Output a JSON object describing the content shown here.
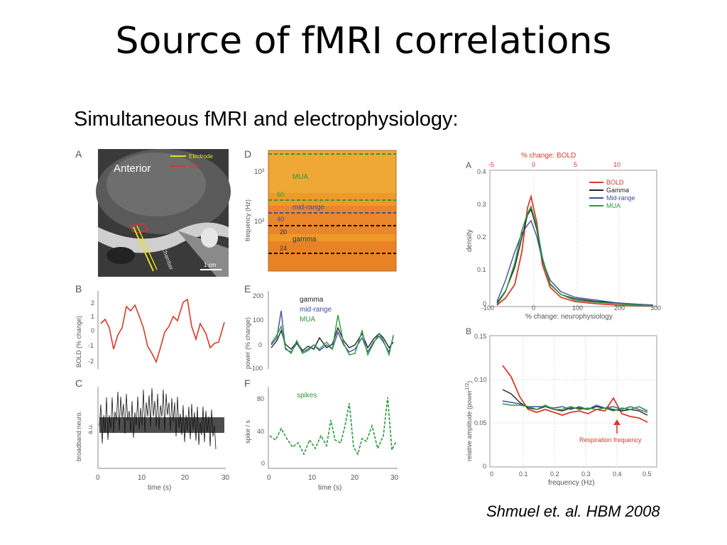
{
  "slide": {
    "title": "Source of fMRI correlations",
    "subtitle": "Simultaneous fMRI and electrophysiology:",
    "citation": "Shmuel et. al. HBM 2008"
  },
  "left_figure": {
    "panel_labels": [
      "A",
      "B",
      "C",
      "D",
      "E",
      "F"
    ],
    "panel_a": {
      "anterior": "Anterior",
      "legend": [
        "Electrode",
        "ROI"
      ],
      "scale": "1 cm",
      "chamber": "Chamber"
    },
    "panel_b": {
      "ylabel": "BOLD (% change)",
      "yticks": [
        "2",
        "1",
        "0",
        "-1",
        "-2"
      ]
    },
    "panel_c": {
      "ylabel": "broadband neuro.",
      "unit": "a.u.",
      "xticks": [
        "0",
        "10",
        "20",
        "30"
      ],
      "xlabel": "time (s)"
    },
    "panel_d": {
      "ylabel": "frequency (Hz)",
      "yticks": [
        "10³",
        "10²"
      ],
      "bands": [
        "MUA",
        "mid-range",
        "gamma"
      ],
      "band_edges": [
        "60",
        "40",
        "20",
        "24"
      ]
    },
    "panel_e": {
      "ylabel": "power (% change)",
      "yticks": [
        "200",
        "100",
        "0",
        "-100"
      ],
      "legend": [
        "gamma",
        "mid-range",
        "MUA"
      ]
    },
    "panel_f": {
      "ylabel": "spike / s",
      "yticks": [
        "80",
        "40",
        "0"
      ],
      "legend": "spikes",
      "xticks": [
        "0",
        "10",
        "20",
        "30"
      ],
      "xlabel": "time (s)"
    },
    "colors": {
      "bold": "#d83a2a",
      "gamma": "#222222",
      "midrange": "#3d4fa0",
      "mua": "#2a9a3a",
      "spikes": "#2a9a3a"
    }
  },
  "right_figure": {
    "panel_a": {
      "label": "A",
      "top_axis_label": "% change: BOLD",
      "top_ticks": [
        "-5",
        "0",
        "5",
        "10"
      ],
      "ylabel": "density",
      "yticks": [
        "0.4",
        "0.3",
        "0.2",
        "0.1",
        "0"
      ],
      "xticks": [
        "-100",
        "0",
        "100",
        "200",
        "300"
      ],
      "xlabel": "% change: neurophysiology",
      "legend": [
        "BOLD",
        "Gamma",
        "Mid-range",
        "MUA"
      ]
    },
    "panel_b": {
      "label": "B",
      "ylabel": "relative amplitude  (power",
      "ylabel_sup": "1/2",
      "ylabel_end": ")",
      "yticks": [
        "0.15",
        "0.10",
        "0.05",
        "0"
      ],
      "xticks": [
        "0",
        "0.1",
        "0.2",
        "0.3",
        "0.4",
        "0.5"
      ],
      "xlabel": "frequency (Hz)",
      "annotation": "Respiration frequency"
    }
  }
}
